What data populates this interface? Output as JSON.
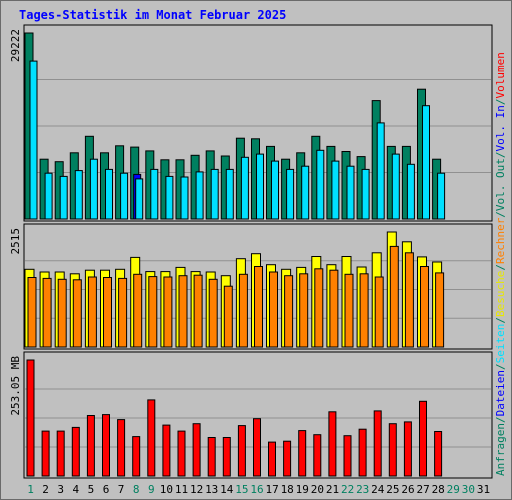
{
  "title": "Tages-Statistik im Monat Februar 2025",
  "chart_data": [
    {
      "type": "bar",
      "name": "anfragen-seiten-chart",
      "ymax_label": "29222",
      "ymax": 29222,
      "x": [
        "1",
        "2",
        "3",
        "4",
        "5",
        "6",
        "7",
        "8",
        "9",
        "10",
        "11",
        "12",
        "13",
        "14",
        "15",
        "16",
        "17",
        "18",
        "19",
        "20",
        "21",
        "22",
        "23",
        "24",
        "25",
        "26",
        "27",
        "28",
        "29",
        "30",
        "31"
      ],
      "series": [
        {
          "name": "Anfragen",
          "color": "#008060",
          "values": [
            29222,
            9400,
            9000,
            10400,
            13000,
            10400,
            11500,
            11300,
            10700,
            9300,
            9300,
            10000,
            10700,
            9900,
            12700,
            12600,
            11400,
            9400,
            10400,
            13000,
            11400,
            10600,
            9800,
            18600,
            11400,
            11400,
            20400,
            9400,
            null,
            null,
            null
          ]
        },
        {
          "name": "Dateien",
          "color": "#0000ff",
          "values": [
            null,
            null,
            null,
            null,
            null,
            null,
            null,
            7000,
            null,
            null,
            null,
            null,
            null,
            null,
            null,
            null,
            null,
            null,
            null,
            null,
            null,
            null,
            null,
            null,
            null,
            null,
            null,
            null,
            null,
            null,
            null
          ]
        },
        {
          "name": "Seiten",
          "color": "#00e0ff",
          "values": [
            24800,
            7200,
            6700,
            7600,
            9400,
            7800,
            7200,
            6300,
            7800,
            6700,
            6600,
            7400,
            7800,
            7800,
            9700,
            10200,
            9100,
            7800,
            8300,
            10800,
            9100,
            8300,
            7800,
            15100,
            10200,
            8600,
            17800,
            7200,
            null,
            null,
            null
          ]
        }
      ],
      "legend": [
        "Anfragen",
        "Dateien",
        "Seiten"
      ]
    },
    {
      "type": "bar",
      "name": "besuche-rechner-chart",
      "ymax_label": "2515",
      "ymax": 2515,
      "x": [
        "1",
        "2",
        "3",
        "4",
        "5",
        "6",
        "7",
        "8",
        "9",
        "10",
        "11",
        "12",
        "13",
        "14",
        "15",
        "16",
        "17",
        "18",
        "19",
        "20",
        "21",
        "22",
        "23",
        "24",
        "25",
        "26",
        "27",
        "28",
        "29",
        "30",
        "31"
      ],
      "series": [
        {
          "name": "Besuche",
          "color": "#ffff00",
          "values": [
            1700,
            1640,
            1640,
            1600,
            1680,
            1680,
            1700,
            1960,
            1650,
            1650,
            1740,
            1650,
            1640,
            1560,
            1930,
            2040,
            1800,
            1700,
            1740,
            1980,
            1800,
            1980,
            1750,
            2060,
            2515,
            2300,
            1970,
            1860,
            null,
            null,
            null
          ]
        },
        {
          "name": "Rechner",
          "color": "#ff8000",
          "values": [
            1520,
            1500,
            1480,
            1470,
            1530,
            1520,
            1500,
            1590,
            1540,
            1530,
            1560,
            1570,
            1480,
            1330,
            1590,
            1760,
            1640,
            1560,
            1600,
            1710,
            1680,
            1590,
            1600,
            1530,
            2200,
            2060,
            1760,
            1620,
            null,
            null,
            null
          ]
        }
      ],
      "legend": [
        "Besuche",
        "Rechner"
      ]
    },
    {
      "type": "bar",
      "name": "volumen-chart",
      "ymax_label": "253.05 MB",
      "ymax": 253.05,
      "unit": "MB",
      "x": [
        "1",
        "2",
        "3",
        "4",
        "5",
        "6",
        "7",
        "8",
        "9",
        "10",
        "11",
        "12",
        "13",
        "14",
        "15",
        "16",
        "17",
        "18",
        "19",
        "20",
        "21",
        "22",
        "23",
        "24",
        "25",
        "26",
        "27",
        "28",
        "29",
        "30",
        "31"
      ],
      "series": [
        {
          "name": "Volumen",
          "color": "#ff0000",
          "values": [
            253.05,
            98,
            98,
            106,
            132,
            134,
            123,
            86,
            166,
            111,
            98,
            114,
            84,
            84,
            110,
            125,
            74,
            76,
            99,
            90,
            140,
            88,
            102,
            142,
            114,
            118,
            163,
            97,
            null,
            null,
            null
          ]
        }
      ],
      "legend": [
        "Volumen",
        "Vol. In",
        "Vol. Out"
      ]
    }
  ],
  "right_labels": [
    {
      "text": "Anfragen",
      "color": "#008060"
    },
    {
      "text": "/",
      "color": "#008060"
    },
    {
      "text": "Dateien",
      "color": "#0000ff"
    },
    {
      "text": "/",
      "color": "#008060"
    },
    {
      "text": "Seiten",
      "color": "#00e0ff"
    },
    {
      "text": "/",
      "color": "#008060"
    },
    {
      "text": "Besuche",
      "color": "#e8e800"
    },
    {
      "text": "/",
      "color": "#008060"
    },
    {
      "text": "Rechner",
      "color": "#ff8000"
    },
    {
      "text": "/",
      "color": "#008060"
    },
    {
      "text": "Vol. Out",
      "color": "#008060"
    },
    {
      "text": "/",
      "color": "#008060"
    },
    {
      "text": "Vol. In",
      "color": "#0000ff"
    },
    {
      "text": "/",
      "color": "#008060"
    },
    {
      "text": "Volumen",
      "color": "#ff0000"
    }
  ],
  "weekend_days": [
    1,
    8,
    9,
    15,
    16,
    22,
    23,
    29,
    30
  ],
  "colors": {
    "title": "#0000ff",
    "weekday_label": "#000000",
    "weekend_label": "#008060",
    "background": "#c0c0c0",
    "gridline": "#909090"
  }
}
